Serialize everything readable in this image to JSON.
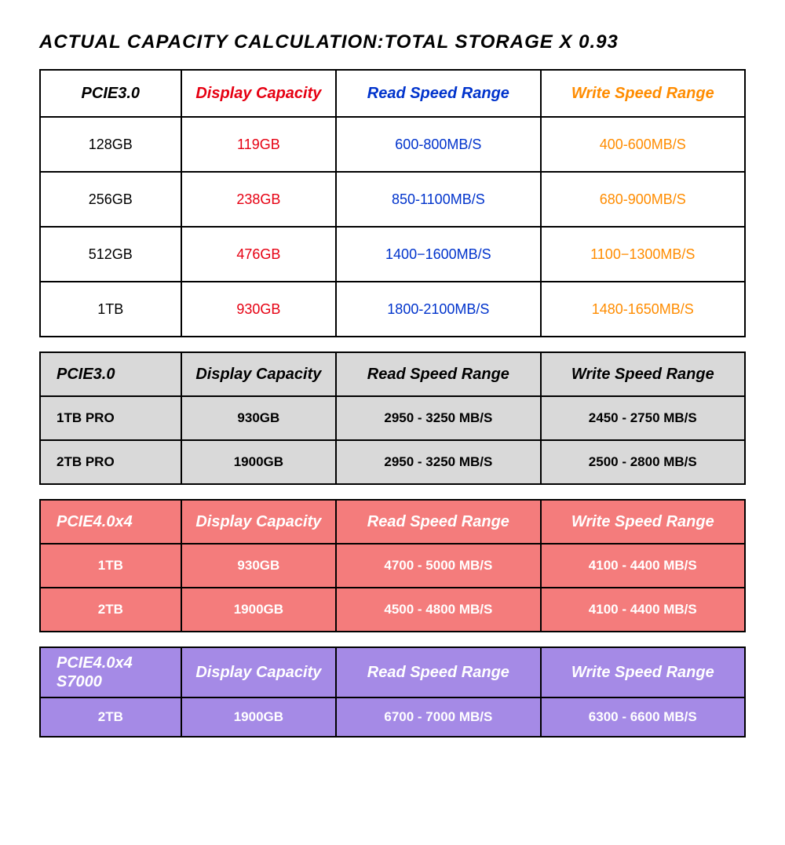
{
  "title": "ACTUAL CAPACITY CALCULATION:TOTAL STORAGE X 0.93",
  "table1": {
    "headers": [
      "PCIE3.0",
      "Display Capacity",
      "Read Speed Range",
      "Write Speed Range"
    ],
    "header_colors": [
      "#000000",
      "#e60012",
      "#0033cc",
      "#ff8c00"
    ],
    "rows": [
      [
        "128GB",
        "119GB",
        "600-800MB/S",
        "400-600MB/S"
      ],
      [
        "256GB",
        "238GB",
        "850-1100MB/S",
        "680-900MB/S"
      ],
      [
        "512GB",
        "476GB",
        "1400−1600MB/S",
        "1100−1300MB/S"
      ],
      [
        "1TB",
        "930GB",
        "1800-2100MB/S",
        "1480-1650MB/S"
      ]
    ],
    "col_colors": [
      "#000000",
      "#e60012",
      "#0033cc",
      "#ff8c00"
    ]
  },
  "table2": {
    "headers": [
      "PCIE3.0",
      "Display Capacity",
      "Read Speed Range",
      "Write Speed Range"
    ],
    "rows": [
      [
        "1TB PRO",
        "930GB",
        "2950 - 3250 MB/S",
        "2450 - 2750 MB/S"
      ],
      [
        "2TB PRO",
        "1900GB",
        "2950 - 3250 MB/S",
        "2500 - 2800 MB/S"
      ]
    ],
    "bg_color": "#d9d9d9",
    "text_color": "#000000"
  },
  "table3": {
    "headers": [
      "PCIE4.0x4",
      "Display Capacity",
      "Read Speed Range",
      "Write Speed Range"
    ],
    "rows": [
      [
        "1TB",
        "930GB",
        "4700 - 5000 MB/S",
        "4100 - 4400 MB/S"
      ],
      [
        "2TB",
        "1900GB",
        "4500 - 4800 MB/S",
        "4100 - 4400 MB/S"
      ]
    ],
    "bg_color": "#f47c7c",
    "text_color": "#ffffff"
  },
  "table4": {
    "headers": [
      "PCIE4.0x4\nS7000",
      "Display Capacity",
      "Read Speed Range",
      "Write Speed Range"
    ],
    "rows": [
      [
        "2TB",
        "1900GB",
        "6700 - 7000 MB/S",
        "6300 - 6600 MB/S"
      ]
    ],
    "bg_color": "#a58ae6",
    "text_color": "#ffffff"
  }
}
